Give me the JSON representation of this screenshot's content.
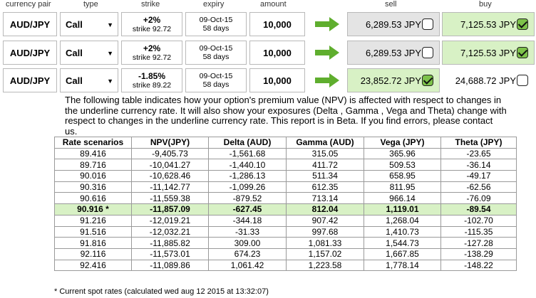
{
  "headers": {
    "currency_pair": "currency pair",
    "type": "type",
    "strike": "strike",
    "expiry": "expiry",
    "amount": "amount",
    "sell": "sell",
    "buy": "buy"
  },
  "trades": [
    {
      "pair": "AUD/JPY",
      "type": "Call",
      "strike_pct": "+2%",
      "strike_value": "strike 92.72",
      "expiry_date": "09-Oct-15",
      "expiry_days": "58 days",
      "amount": "10,000",
      "sell": "6,289.53 JPY",
      "sell_checked": false,
      "buy": "7,125.53 JPY",
      "buy_checked": true
    },
    {
      "pair": "AUD/JPY",
      "type": "Call",
      "strike_pct": "+2%",
      "strike_value": "strike 92.72",
      "expiry_date": "09-Oct-15",
      "expiry_days": "58 days",
      "amount": "10,000",
      "sell": "6,289.53 JPY",
      "sell_checked": false,
      "buy": "7,125.53 JPY",
      "buy_checked": true
    },
    {
      "pair": "AUD/JPY",
      "type": "Call",
      "strike_pct": "-1.85%",
      "strike_value": "strike 89.22",
      "expiry_date": "09-Oct-15",
      "expiry_days": "58 days",
      "amount": "10,000",
      "sell": "23,852.72 JPY",
      "sell_checked": true,
      "buy": "24,688.72 JPY",
      "buy_checked": false
    }
  ],
  "description": "The following table indicates how your option's premium value (NPV) is affected with respect to changes in the underline currency rate. It will also show your exposures (Delta , Gamma , Vega and Theta) change with respect to changes in the underline currency rate. This report is in Beta. If you find errors, please contact us.",
  "table": {
    "columns": [
      "Rate scenarios",
      "NPV(JPY)",
      "Delta (AUD)",
      "Gamma (AUD)",
      "Vega (JPY)",
      "Theta (JPY)"
    ],
    "rows": [
      [
        "89.416",
        "-9,405.73",
        "-1,561.68",
        "315.05",
        "365.96",
        "-23.65"
      ],
      [
        "89.716",
        "-10,041.27",
        "-1,440.10",
        "411.72",
        "509.53",
        "-36.14"
      ],
      [
        "90.016",
        "-10,628.46",
        "-1,286.13",
        "511.34",
        "658.95",
        "-49.17"
      ],
      [
        "90.316",
        "-11,142.77",
        "-1,099.26",
        "612.35",
        "811.95",
        "-62.56"
      ],
      [
        "90.616",
        "-11,559.38",
        "-879.52",
        "713.14",
        "966.14",
        "-76.09"
      ],
      [
        "90.916 *",
        "-11,857.09",
        "-627.45",
        "812.04",
        "1,119.01",
        "-89.54"
      ],
      [
        "91.216",
        "-12,019.21",
        "-344.18",
        "907.42",
        "1,268.04",
        "-102.70"
      ],
      [
        "91.516",
        "-12,032.21",
        "-31.33",
        "997.68",
        "1,410.73",
        "-115.35"
      ],
      [
        "91.816",
        "-11,885.82",
        "309.00",
        "1,081.33",
        "1,544.73",
        "-127.28"
      ],
      [
        "92.116",
        "-11,573.01",
        "674.23",
        "1,157.02",
        "1,667.85",
        "-138.29"
      ],
      [
        "92.416",
        "-11,089.86",
        "1,061.42",
        "1,223.58",
        "1,778.14",
        "-148.22"
      ]
    ],
    "highlight_row": 5
  },
  "footnote": "* Current spot rates (calculated wed aug 12 2015 at 13:32:07)",
  "colors": {
    "arrow_green": "#5fae2e",
    "highlight_green": "#d8f1c5",
    "sell_grey": "#e4e4e4"
  },
  "icons": {
    "go": "right-arrow-icon",
    "dropdown": "triangle-down-icon",
    "check": "checkbox-icon"
  }
}
